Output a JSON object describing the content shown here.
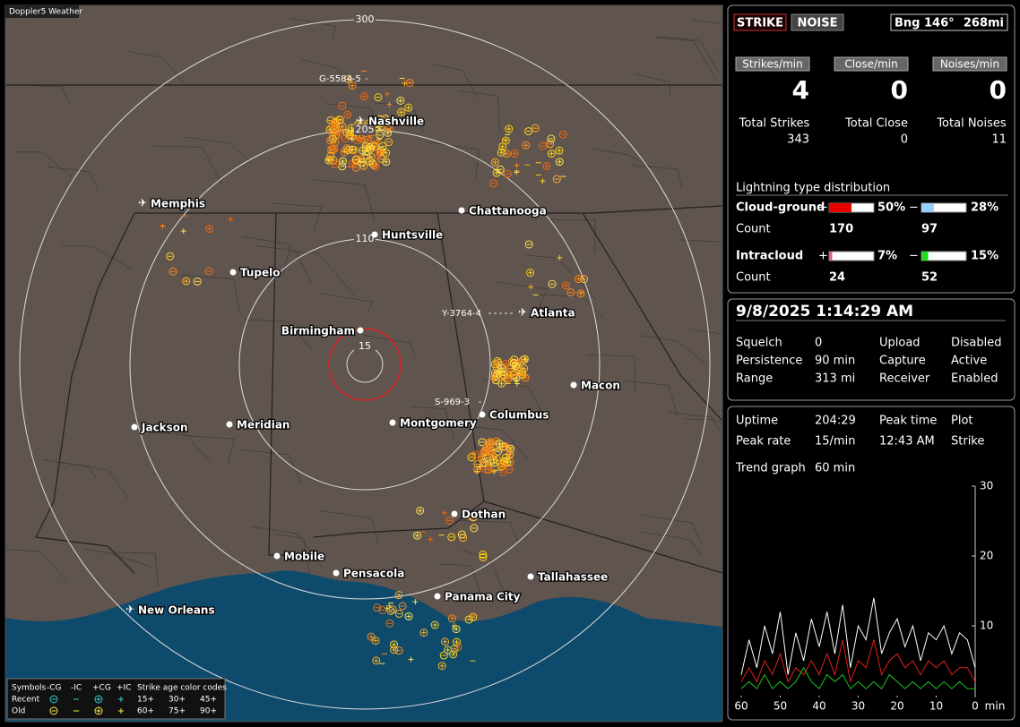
{
  "map": {
    "title": "Doppler5 Weather",
    "range_labels": [
      "300",
      "205",
      "110",
      "15"
    ],
    "cities": [
      "Nashville",
      "Memphis",
      "Chattanooga",
      "Huntsville",
      "Tupelo",
      "Atlanta",
      "Birmingham",
      "Macon",
      "Columbus",
      "Montgomery",
      "Jackson",
      "Meridian",
      "Dothan",
      "Mobile",
      "Pensacola",
      "Tallahassee",
      "Panama City",
      "New Orleans"
    ],
    "storms": [
      "G-5584-5",
      "Y-3764-4",
      "S-969-3"
    ],
    "legend": {
      "symbols": "Symbols",
      "headers": [
        "-CG",
        "-IC",
        "+CG",
        "+IC"
      ],
      "age_title": "Strike age color codes",
      "recent": "Recent",
      "old": "Old",
      "recent_ages": [
        "15+",
        "30+",
        "45+"
      ],
      "old_ages": [
        "60+",
        "75+",
        "90+"
      ]
    }
  },
  "status": {
    "strike": "STRIKE",
    "noise": "NOISE",
    "bearing": "Bng 146°",
    "distance": "268mi",
    "rate_headers": [
      "Strikes/min",
      "Close/min",
      "Noises/min"
    ],
    "rates": [
      4,
      0,
      0
    ],
    "total_headers": [
      "Total Strikes",
      "Total Close",
      "Total Noises"
    ],
    "totals": [
      343,
      0,
      11
    ]
  },
  "distribution": {
    "title": "Lightning type distribution",
    "count_label": "Count",
    "rows": [
      {
        "name": "Cloud-ground",
        "plus": "+",
        "minus": "−",
        "plus_pct": {
          "value": 50,
          "label": "50%"
        },
        "minus_pct": {
          "value": 28,
          "label": "28%"
        },
        "plus_count": 170,
        "minus_count": 97
      },
      {
        "name": "Intracloud",
        "plus": "+",
        "minus": "−",
        "plus_pct": {
          "value": 7,
          "label": "7%"
        },
        "minus_pct": {
          "value": 15,
          "label": "15%"
        },
        "plus_count": 24,
        "minus_count": 52
      }
    ]
  },
  "info": {
    "datetime": "9/8/2025 1:14:29 AM",
    "rows": [
      [
        "Squelch",
        "0",
        "Upload",
        "Disabled"
      ],
      [
        "Persistence",
        "90 min",
        "Capture",
        "Active"
      ],
      [
        "Range",
        "313 mi",
        "Receiver",
        "Enabled"
      ]
    ]
  },
  "trend": {
    "rows": [
      [
        "Uptime",
        "204:29",
        "Peak time",
        "Plot"
      ],
      [
        "Peak rate",
        "15/min",
        "12:43 AM",
        "Strike"
      ],
      [
        "Trend graph",
        "60 min"
      ]
    ]
  },
  "chart_data": {
    "type": "line",
    "x": [
      60,
      58,
      56,
      54,
      52,
      50,
      48,
      46,
      44,
      42,
      40,
      38,
      36,
      34,
      32,
      30,
      28,
      26,
      24,
      22,
      20,
      18,
      16,
      14,
      12,
      10,
      8,
      6,
      4,
      2,
      0
    ],
    "xlim": [
      60,
      0
    ],
    "ylim": [
      0,
      30
    ],
    "xticks": [
      60,
      50,
      40,
      30,
      20,
      10,
      0
    ],
    "xlabel": "min",
    "yticks": [
      10,
      20,
      30
    ],
    "series": [
      {
        "color": "#ffffff",
        "values": [
          3,
          8,
          4,
          10,
          6,
          12,
          3,
          9,
          5,
          11,
          7,
          12,
          6,
          13,
          4,
          10,
          8,
          14,
          6,
          9,
          11,
          7,
          10,
          5,
          9,
          8,
          10,
          6,
          9,
          8,
          4
        ]
      },
      {
        "color": "#e02020",
        "values": [
          2,
          4,
          2,
          5,
          3,
          6,
          2,
          4,
          3,
          5,
          3,
          6,
          3,
          8,
          2,
          5,
          4,
          8,
          3,
          5,
          6,
          4,
          5,
          3,
          5,
          4,
          5,
          3,
          4,
          4,
          2
        ]
      },
      {
        "color": "#20c020",
        "values": [
          1,
          2,
          1,
          3,
          1,
          2,
          1,
          2,
          4,
          2,
          1,
          3,
          2,
          3,
          1,
          2,
          1,
          2,
          1,
          3,
          2,
          1,
          2,
          1,
          2,
          1,
          2,
          1,
          2,
          1,
          1
        ]
      }
    ]
  }
}
